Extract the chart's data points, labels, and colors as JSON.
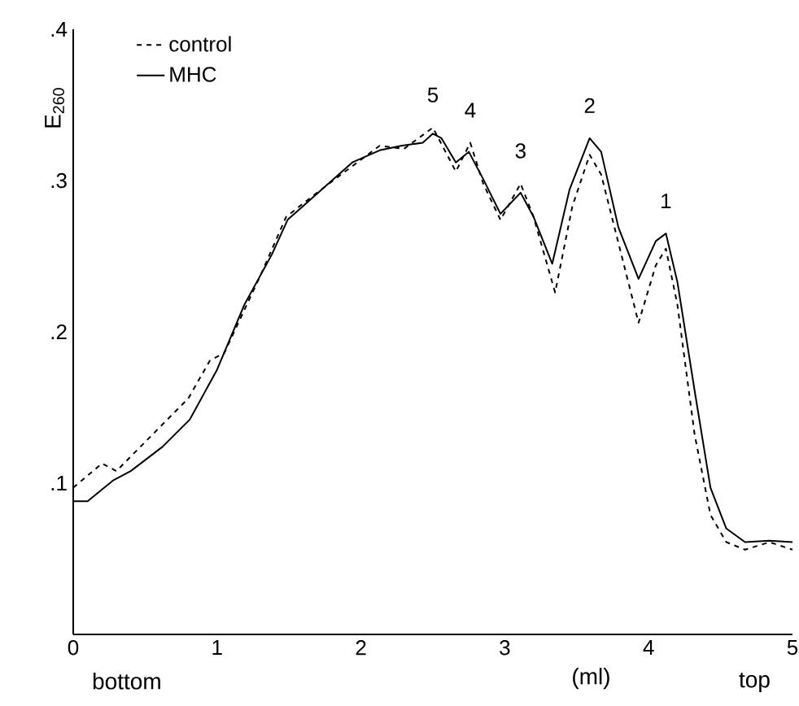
{
  "chart_data": {
    "type": "line",
    "xlabel": "(ml)",
    "ylabel": "E$_{260}$",
    "xlim": [
      0,
      5
    ],
    "ylim": [
      0,
      0.4
    ],
    "xticks": [
      0,
      1,
      2,
      3,
      4,
      5
    ],
    "yticks": [
      {
        "value": 0,
        "label": null
      },
      {
        "value": 0.1,
        "label": ".1"
      },
      {
        "value": 0.2,
        "label": ".2"
      },
      {
        "value": 0.3,
        "label": ".3"
      },
      {
        "value": 0.4,
        "label": ".4"
      }
    ],
    "grid": false,
    "legend": "top left",
    "marker": "none",
    "series": [
      {
        "name": "control",
        "color": "#000000",
        "line_style": "dashed",
        "x": [
          0,
          0.2,
          0.3,
          0.55,
          0.8,
          0.95,
          1.05,
          1.3,
          1.48,
          1.6,
          1.75,
          2.13,
          2.3,
          2.5,
          2.66,
          2.76,
          2.85,
          2.97,
          3.11,
          3.2,
          3.35,
          3.47,
          3.59,
          3.67,
          3.8,
          3.93,
          4.05,
          4.12,
          4.2,
          4.32,
          4.43,
          4.54,
          4.67,
          4.84,
          5.0
        ],
        "values": [
          0.097,
          0.113,
          0.108,
          0.132,
          0.156,
          0.181,
          0.186,
          0.237,
          0.276,
          0.285,
          0.296,
          0.323,
          0.321,
          0.335,
          0.306,
          0.325,
          0.298,
          0.274,
          0.298,
          0.276,
          0.226,
          0.283,
          0.317,
          0.304,
          0.255,
          0.206,
          0.244,
          0.255,
          0.218,
          0.132,
          0.079,
          0.061,
          0.056,
          0.061,
          0.056
        ]
      },
      {
        "name": "MHC",
        "color": "#000000",
        "line_style": "solid",
        "x": [
          0,
          0.1,
          0.28,
          0.4,
          0.62,
          0.81,
          1.0,
          1.19,
          1.38,
          1.49,
          1.75,
          1.94,
          2.13,
          2.28,
          2.43,
          2.5,
          2.56,
          2.66,
          2.75,
          2.85,
          2.97,
          3.11,
          3.2,
          3.33,
          3.45,
          3.59,
          3.67,
          3.79,
          3.93,
          4.05,
          4.12,
          4.2,
          4.32,
          4.43,
          4.54,
          4.67,
          4.84,
          5.0
        ],
        "values": [
          0.088,
          0.088,
          0.102,
          0.108,
          0.124,
          0.142,
          0.175,
          0.218,
          0.251,
          0.274,
          0.296,
          0.312,
          0.32,
          0.323,
          0.325,
          0.331,
          0.328,
          0.312,
          0.319,
          0.301,
          0.278,
          0.292,
          0.276,
          0.245,
          0.294,
          0.328,
          0.319,
          0.269,
          0.235,
          0.26,
          0.265,
          0.233,
          0.161,
          0.097,
          0.07,
          0.061,
          0.062,
          0.061
        ]
      }
    ],
    "annotations": [
      {
        "text": "5",
        "x": 2.5,
        "y": 0.335
      },
      {
        "text": "4",
        "x": 2.76,
        "y": 0.325
      },
      {
        "text": "3",
        "x": 3.11,
        "y": 0.298
      },
      {
        "text": "2",
        "x": 3.59,
        "y": 0.328
      },
      {
        "text": "1",
        "x": 4.12,
        "y": 0.265
      },
      "bottom",
      "top"
    ]
  }
}
